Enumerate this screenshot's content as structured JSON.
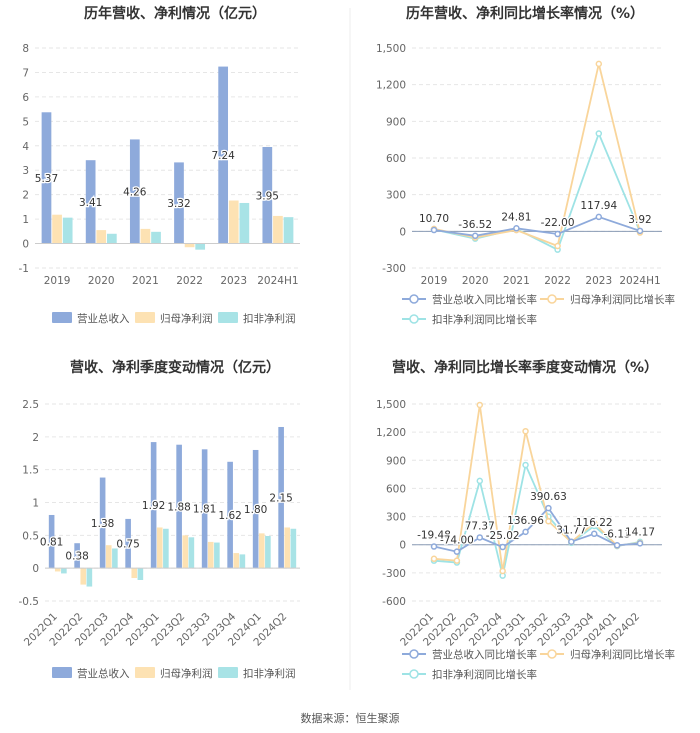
{
  "source": "数据来源：恒生聚源",
  "colors": {
    "revenue": "#8eaadb",
    "net_profit": "#fde2b3",
    "deducted_profit": "#a8e3e6",
    "revenue_line": "#8eaadb",
    "net_profit_line": "#f9d59b",
    "deducted_profit_line": "#9ee3e5"
  },
  "chart_data": [
    {
      "type": "bar",
      "title": "历年营收、净利情况（亿元）",
      "categories": [
        "2019",
        "2020",
        "2021",
        "2022",
        "2023",
        "2024H1"
      ],
      "ylim": [
        -1,
        8
      ],
      "yticks": [
        -1,
        0,
        1,
        2,
        3,
        4,
        5,
        6,
        7,
        8
      ],
      "series": [
        {
          "name": "营业总收入",
          "values": [
            5.37,
            3.41,
            4.26,
            3.32,
            7.24,
            3.95
          ],
          "labels": [
            "5.37",
            "3.41",
            "4.26",
            "3.32",
            "7.24",
            "3.95"
          ]
        },
        {
          "name": "归母净利润",
          "values": [
            1.18,
            0.55,
            0.6,
            -0.15,
            1.76,
            1.13
          ]
        },
        {
          "name": "扣非净利润",
          "values": [
            1.06,
            0.4,
            0.48,
            -0.25,
            1.66,
            1.08
          ]
        }
      ]
    },
    {
      "type": "line",
      "title": "历年营收、净利同比增长率情况（%）",
      "categories": [
        "2019",
        "2020",
        "2021",
        "2022",
        "2023",
        "2024H1"
      ],
      "ylim": [
        -300,
        1500
      ],
      "yticks": [
        -300,
        0,
        300,
        600,
        900,
        1200,
        1500
      ],
      "ytick_labels": [
        "-300",
        "0",
        "300",
        "600",
        "900",
        "1,200",
        "1,500"
      ],
      "series": [
        {
          "name": "营业总收入同比增长率",
          "values": [
            10.7,
            -36.52,
            24.81,
            -22.0,
            117.94,
            3.92
          ],
          "labels": [
            "10.70",
            "-36.52",
            "24.81",
            "-22.00",
            "117.94",
            "3.92"
          ]
        },
        {
          "name": "归母净利润同比增长率",
          "values": [
            20,
            -50,
            10,
            -120,
            1370,
            -10
          ]
        },
        {
          "name": "扣非净利润同比增长率",
          "values": [
            15,
            -60,
            20,
            -150,
            800,
            -5
          ]
        }
      ]
    },
    {
      "type": "bar",
      "title": "营收、净利季度变动情况（亿元）",
      "categories": [
        "2022Q1",
        "2022Q2",
        "2022Q3",
        "2022Q4",
        "2023Q1",
        "2023Q2",
        "2023Q3",
        "2023Q4",
        "2024Q1",
        "2024Q2"
      ],
      "ylim": [
        -0.5,
        2.5
      ],
      "yticks": [
        -0.5,
        0,
        0.5,
        1,
        1.5,
        2,
        2.5
      ],
      "ytick_labels": [
        "-0.5",
        "0",
        "0.5",
        "1",
        "1.5",
        "2",
        "2.5"
      ],
      "series": [
        {
          "name": "营业总收入",
          "values": [
            0.81,
            0.38,
            1.38,
            0.75,
            1.92,
            1.88,
            1.81,
            1.62,
            1.8,
            2.15
          ],
          "labels": [
            "0.81",
            "0.38",
            "1.38",
            "0.75",
            "1.92",
            "1.88",
            "1.81",
            "1.62",
            "1.80",
            "2.15"
          ]
        },
        {
          "name": "归母净利润",
          "values": [
            -0.05,
            -0.25,
            0.35,
            -0.15,
            0.62,
            0.5,
            0.4,
            0.23,
            0.53,
            0.62
          ]
        },
        {
          "name": "扣非净利润",
          "values": [
            -0.08,
            -0.28,
            0.3,
            -0.18,
            0.6,
            0.47,
            0.39,
            0.21,
            0.49,
            0.6
          ]
        }
      ]
    },
    {
      "type": "line",
      "title": "营收、净利同比增长率季度变动情况（%）",
      "categories": [
        "2022Q1",
        "2022Q2",
        "2022Q3",
        "2022Q4",
        "2023Q1",
        "2023Q2",
        "2023Q3",
        "2023Q4",
        "2024Q1",
        "2024Q2"
      ],
      "ylim": [
        -600,
        1500
      ],
      "yticks": [
        -600,
        -300,
        0,
        300,
        600,
        900,
        1200,
        1500
      ],
      "ytick_labels": [
        "-600",
        "-300",
        "0",
        "300",
        "600",
        "900",
        "1,200",
        "1,500"
      ],
      "series": [
        {
          "name": "营业总收入同比增长率",
          "values": [
            -19.48,
            -74.0,
            77.37,
            -25.02,
            136.96,
            390.63,
            31.77,
            116.22,
            -6.13,
            14.17
          ],
          "labels": [
            "-19.48",
            "-74.00",
            "77.37",
            "-25.02",
            "136.96",
            "390.63",
            "31.77",
            "116.22",
            "-6.13",
            "14.17"
          ]
        },
        {
          "name": "归母净利润同比增长率",
          "values": [
            -150,
            -170,
            1490,
            -280,
            1210,
            250,
            30,
            230,
            -10,
            20
          ]
        },
        {
          "name": "扣非净利润同比增长率",
          "values": [
            -170,
            -190,
            680,
            -330,
            850,
            300,
            20,
            200,
            -15,
            30
          ]
        }
      ]
    }
  ]
}
